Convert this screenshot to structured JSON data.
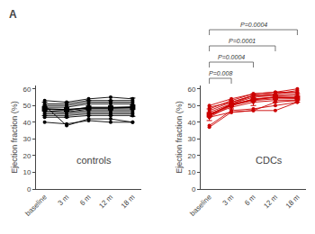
{
  "chart_data": [
    {
      "type": "line",
      "title": "A",
      "ylabel": "Ejection fraction (%)",
      "categories": [
        "baseline",
        "3 m",
        "6 m",
        "12 m",
        "18 m"
      ],
      "ylim": [
        0,
        62
      ],
      "yticks": [
        0,
        10,
        20,
        30,
        40,
        50,
        60
      ],
      "grid": false,
      "series": [
        {
          "color": "#000000",
          "marker": "circle",
          "values": [
            53,
            52,
            54,
            55,
            54
          ]
        },
        {
          "color": "#000000",
          "marker": "circle",
          "values": [
            51,
            51,
            53,
            53,
            53
          ]
        },
        {
          "color": "#000000",
          "marker": "circle",
          "values": [
            50,
            50,
            52,
            52,
            52
          ]
        },
        {
          "color": "#000000",
          "marker": "circle",
          "values": [
            49,
            49,
            51,
            51,
            51
          ]
        },
        {
          "color": "#000000",
          "marker": "circle",
          "values": [
            48,
            47,
            49,
            49,
            49
          ]
        },
        {
          "color": "#000000",
          "marker": "circle",
          "values": [
            47,
            46,
            48,
            48,
            48
          ]
        },
        {
          "color": "#000000",
          "marker": "circle",
          "values": [
            46,
            46,
            47,
            47,
            47
          ]
        },
        {
          "color": "#000000",
          "marker": "circle",
          "values": [
            45,
            45,
            46,
            46,
            46
          ]
        },
        {
          "color": "#000000",
          "marker": "circle",
          "values": [
            44,
            44,
            45,
            45,
            45
          ]
        },
        {
          "color": "#000000",
          "marker": "circle",
          "values": [
            43,
            43,
            44,
            44,
            44
          ]
        },
        {
          "color": "#000000",
          "marker": "circle",
          "values": [
            50,
            38,
            42,
            42,
            40
          ]
        },
        {
          "color": "#000000",
          "marker": "circle",
          "values": [
            40,
            39,
            41,
            40,
            40
          ]
        },
        {
          "color": "#000000",
          "marker": "square",
          "values": [
            48.0,
            47.5,
            48.5,
            48.5,
            49.0
          ],
          "errors": [
            4.0,
            4.5,
            4.5,
            4.5,
            5.5
          ]
        }
      ],
      "annotations": [
        {
          "text": "controls"
        }
      ]
    },
    {
      "type": "line",
      "ylabel": "Ejection fraction (%)",
      "categories": [
        "baseline",
        "3 m",
        "6 m",
        "12 m",
        "18 m"
      ],
      "ylim": [
        0,
        62
      ],
      "yticks": [
        0,
        10,
        20,
        30,
        40,
        50,
        60
      ],
      "grid": false,
      "series": [
        {
          "color": "#cc0000",
          "marker": "circle",
          "values": [
            44,
            51,
            55,
            56,
            56
          ]
        },
        {
          "color": "#cc0000",
          "marker": "circle",
          "values": [
            43,
            50,
            54,
            55,
            55
          ]
        },
        {
          "color": "#cc0000",
          "marker": "circle",
          "values": [
            48,
            53,
            57,
            58,
            60
          ]
        },
        {
          "color": "#cc0000",
          "marker": "circle",
          "values": [
            47,
            52,
            56,
            57,
            59
          ]
        },
        {
          "color": "#cc0000",
          "marker": "circle",
          "values": [
            46,
            51,
            56,
            57,
            58
          ]
        },
        {
          "color": "#cc0000",
          "marker": "circle",
          "values": [
            50,
            54,
            57,
            58,
            58
          ]
        },
        {
          "color": "#cc0000",
          "marker": "circle",
          "values": [
            49,
            52,
            56,
            56,
            57
          ]
        },
        {
          "color": "#cc0000",
          "marker": "circle",
          "values": [
            45,
            50,
            53,
            54,
            54
          ]
        },
        {
          "color": "#cc0000",
          "marker": "circle",
          "values": [
            44,
            49,
            52,
            53,
            53
          ]
        },
        {
          "color": "#cc0000",
          "marker": "circle",
          "values": [
            38,
            47,
            48,
            50,
            52
          ]
        },
        {
          "color": "#cc0000",
          "marker": "circle",
          "values": [
            37,
            46,
            47,
            47,
            52
          ]
        },
        {
          "color": "#cc0000",
          "marker": "circle",
          "values": [
            43,
            46,
            47,
            52,
            53
          ]
        },
        {
          "color": "#cc0000",
          "marker": "square",
          "values": [
            44.5,
            50.5,
            53.5,
            55.0,
            54.5
          ],
          "errors": [
            3.5,
            2.5,
            3.5,
            3.0,
            2.5
          ]
        }
      ],
      "annotations": [
        {
          "text": "CDCs"
        },
        {
          "text": "P=0.008",
          "x1": "baseline",
          "x2": "3 m"
        },
        {
          "text": "P=0.0004",
          "x1": "baseline",
          "x2": "6 m"
        },
        {
          "text": "P=0.0001",
          "x1": "baseline",
          "x2": "12 m"
        },
        {
          "text": "P=0.0004",
          "x1": "baseline",
          "x2": "18 m"
        }
      ]
    }
  ]
}
